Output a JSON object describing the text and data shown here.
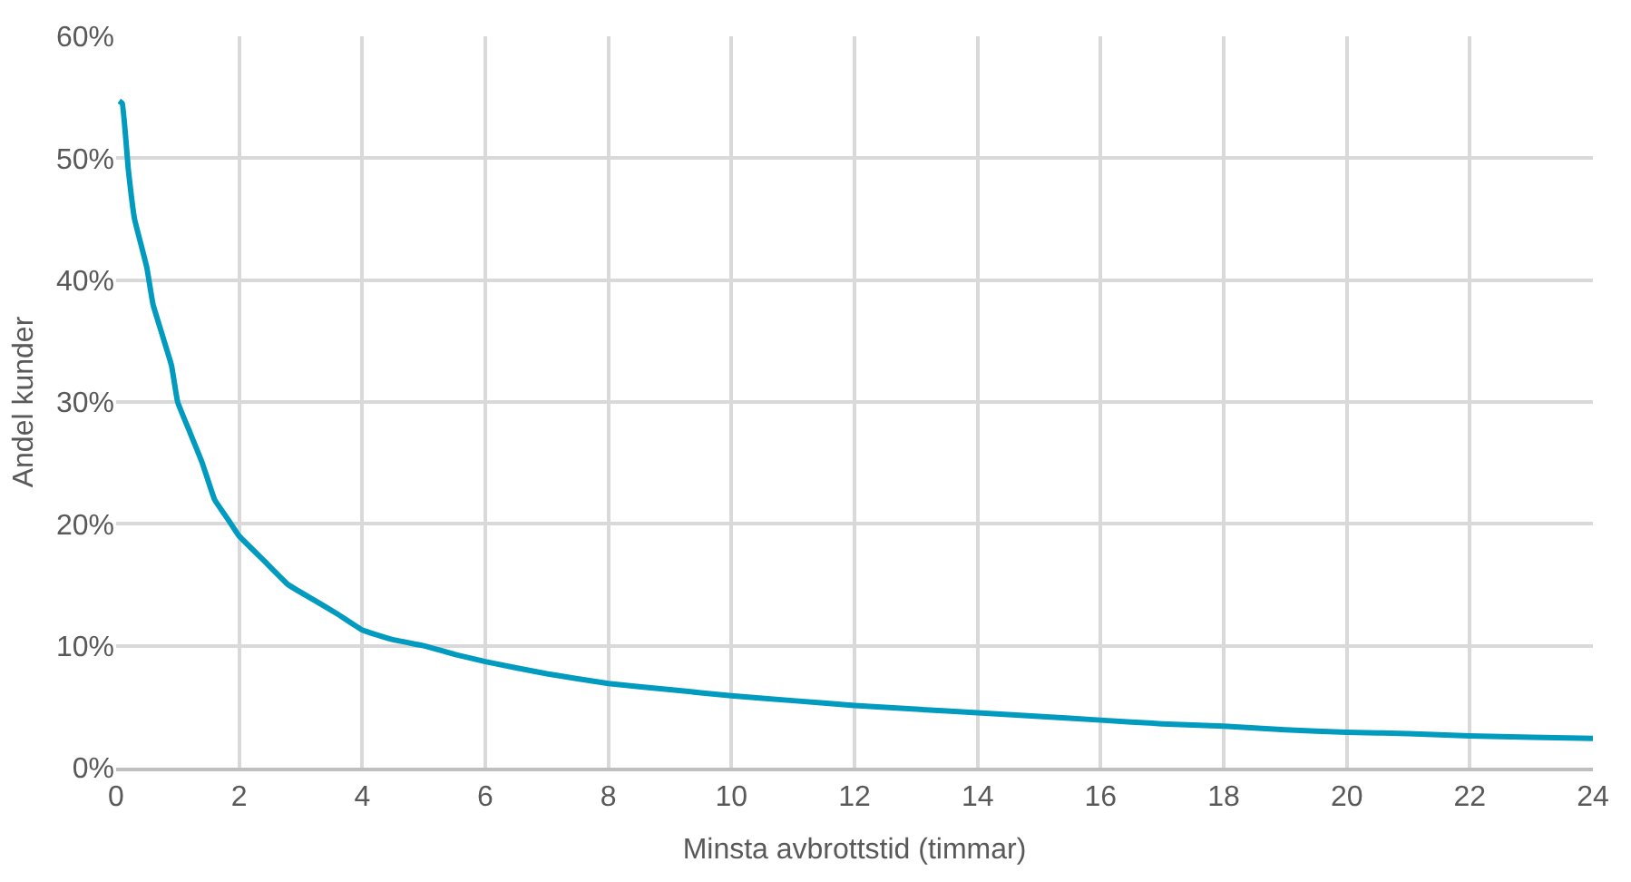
{
  "chart_data": {
    "type": "line",
    "xlabel": "Minsta avbrottstid (timmar)",
    "ylabel": "Andel kunder",
    "x": [
      0.05,
      0.1,
      0.2,
      0.3,
      0.4,
      0.5,
      0.6,
      0.75,
      0.9,
      1.0,
      1.2,
      1.4,
      1.6,
      1.8,
      2,
      2.4,
      2.8,
      3.2,
      3.6,
      4,
      4.5,
      5,
      5.5,
      6,
      7,
      8,
      9,
      10,
      11,
      12,
      13,
      14,
      15,
      16,
      17,
      18,
      19,
      20,
      21,
      22,
      23,
      24
    ],
    "series": [
      {
        "color": "#009bbf",
        "values": [
          54.7,
          54.5,
          49,
          45,
          43,
          41,
          38,
          35.5,
          33,
          30,
          27.5,
          25,
          22,
          20.5,
          19,
          17,
          15,
          13.8,
          12.6,
          11.3,
          10.5,
          10,
          9.3,
          8.7,
          7.7,
          6.9,
          6.4,
          5.9,
          5.5,
          5.1,
          4.8,
          4.5,
          4.2,
          3.9,
          3.6,
          3.4,
          3.1,
          2.9,
          2.8,
          2.6,
          2.5,
          2.4
        ]
      }
    ],
    "xlim": [
      0,
      24
    ],
    "xticks": [
      0,
      2,
      4,
      6,
      8,
      10,
      12,
      14,
      16,
      18,
      20,
      22,
      24
    ],
    "ylim": [
      0,
      60
    ],
    "yticks": [
      {
        "value": 0,
        "label": "0%"
      },
      {
        "value": 10,
        "label": "10%"
      },
      {
        "value": 20,
        "label": "20%"
      },
      {
        "value": 30,
        "label": "30%"
      },
      {
        "value": 40,
        "label": "40%"
      },
      {
        "value": 50,
        "label": "50%"
      },
      {
        "value": 60,
        "label": "60%"
      }
    ],
    "grid": true,
    "marker": "none",
    "line_style": "solid"
  }
}
